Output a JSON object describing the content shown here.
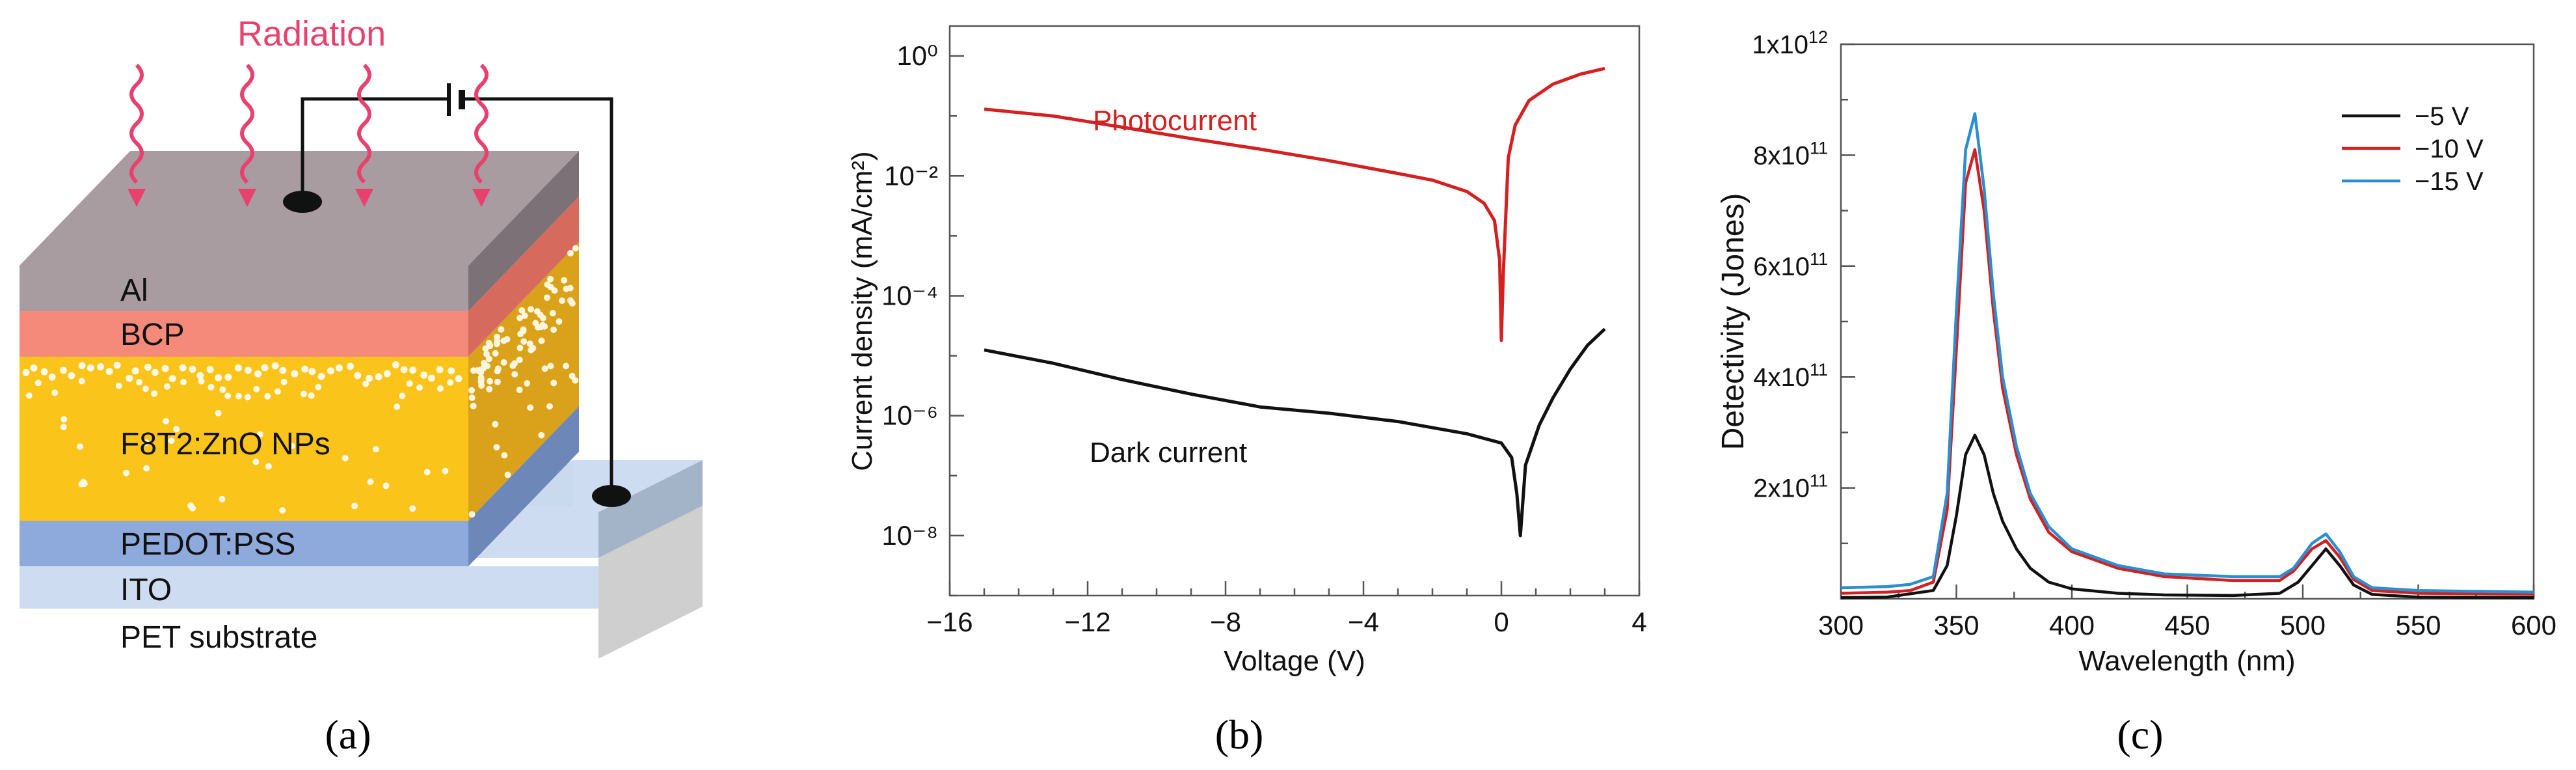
{
  "panel_a": {
    "radiation_label": "Radiation",
    "layers": [
      "Al",
      "BCP",
      "F8T2:ZnO NPs",
      "PEDOT:PSS",
      "ITO",
      "PET substrate"
    ],
    "caption": "(a)",
    "colors": {
      "radiation": "#e8416f",
      "al": "#a89ca0",
      "bcp": "#f58a7a",
      "active": "#fbc41a",
      "pedot": "#8ea9dc",
      "ito": "#cddcf0",
      "pet": "#ffffff"
    }
  },
  "panel_b": {
    "caption": "(b)"
  },
  "panel_c": {
    "caption": "(c)"
  },
  "chart_data": [
    {
      "type": "line",
      "panel": "b",
      "xlabel": "Voltage (V)",
      "ylabel": "Current density (mA/cm²)",
      "x_ticks": [
        "−16",
        "−12",
        "−8",
        "−4",
        "0",
        "4"
      ],
      "y_ticks": [
        "10⁰",
        "10⁻²",
        "10⁻⁴",
        "10⁻⁶",
        "10⁻⁸"
      ],
      "xlim": [
        -16,
        4
      ],
      "ylim_log10": [
        -9,
        0.5
      ],
      "y_scale": "log",
      "series": [
        {
          "name": "Photocurrent",
          "color": "#d42020",
          "points": [
            [
              -15,
              0.13
            ],
            [
              -13,
              0.1
            ],
            [
              -11,
              0.065
            ],
            [
              -9,
              0.042
            ],
            [
              -7,
              0.028
            ],
            [
              -5,
              0.018
            ],
            [
              -3,
              0.011
            ],
            [
              -2,
              0.0085
            ],
            [
              -1,
              0.0055
            ],
            [
              -0.5,
              0.0035
            ],
            [
              -0.2,
              0.0018
            ],
            [
              -0.05,
              0.0004
            ],
            [
              0,
              1.8e-05
            ],
            [
              0.05,
              0.0002
            ],
            [
              0.2,
              0.02
            ],
            [
              0.4,
              0.07
            ],
            [
              0.8,
              0.18
            ],
            [
              1.5,
              0.34
            ],
            [
              2.3,
              0.5
            ],
            [
              3,
              0.62
            ]
          ]
        },
        {
          "name": "Dark current",
          "color": "#111111",
          "points": [
            [
              -15,
              1.25e-05
            ],
            [
              -13,
              7.5e-06
            ],
            [
              -11,
              4e-06
            ],
            [
              -9,
              2.3e-06
            ],
            [
              -7,
              1.4e-06
            ],
            [
              -5,
              1.1e-06
            ],
            [
              -3,
              8e-07
            ],
            [
              -1,
              5e-07
            ],
            [
              0,
              3.5e-07
            ],
            [
              0.3,
              2e-07
            ],
            [
              0.45,
              5e-08
            ],
            [
              0.55,
              1e-08
            ],
            [
              0.7,
              1.5e-07
            ],
            [
              1.1,
              7e-07
            ],
            [
              1.5,
              2e-06
            ],
            [
              2,
              6e-06
            ],
            [
              2.5,
              1.5e-05
            ],
            [
              3,
              2.8e-05
            ]
          ]
        }
      ]
    },
    {
      "type": "line",
      "panel": "c",
      "xlabel": "Wavelength (nm)",
      "ylabel": "Detectivity (Jones)",
      "x_ticks": [
        "300",
        "350",
        "400",
        "450",
        "500",
        "550",
        "600"
      ],
      "xlim": [
        300,
        600
      ],
      "ylim": [
        0,
        1000000000000
      ],
      "y_ticks": [
        {
          "value": 200000000000,
          "mantissa": "2x10",
          "exp": "11"
        },
        {
          "value": 400000000000,
          "mantissa": "4x10",
          "exp": "11"
        },
        {
          "value": 600000000000,
          "mantissa": "6x10",
          "exp": "11"
        },
        {
          "value": 800000000000,
          "mantissa": "8x10",
          "exp": "11"
        },
        {
          "value": 1000000000000,
          "mantissa": "1x10",
          "exp": "12"
        }
      ],
      "legend_position": "top-right",
      "series": [
        {
          "name": "−5 V",
          "color": "#111111",
          "x": [
            300,
            320,
            340,
            346,
            350,
            354,
            358,
            362,
            366,
            370,
            376,
            382,
            390,
            400,
            420,
            440,
            470,
            490,
            498,
            504,
            510,
            516,
            522,
            530,
            550,
            600
          ],
          "y": [
            2000000000.0,
            3000000000.0,
            15000000000.0,
            60000000000.0,
            150000000000.0,
            260000000000.0,
            295000000000.0,
            260000000000.0,
            190000000000.0,
            140000000000.0,
            90000000000.0,
            55000000000.0,
            30000000000.0,
            18000000000.0,
            10000000000.0,
            7000000000.0,
            6000000000.0,
            10000000000.0,
            30000000000.0,
            60000000000.0,
            90000000000.0,
            60000000000.0,
            25000000000.0,
            8000000000.0,
            3000000000.0,
            2000000000.0
          ]
        },
        {
          "name": "−10 V",
          "color": "#d42020",
          "x": [
            300,
            320,
            330,
            340,
            346,
            350,
            354,
            358,
            362,
            366,
            370,
            376,
            382,
            390,
            400,
            420,
            440,
            470,
            490,
            496,
            504,
            510,
            516,
            522,
            530,
            550,
            600
          ],
          "y": [
            10000000000.0,
            12000000000.0,
            15000000000.0,
            30000000000.0,
            160000000000.0,
            450000000000.0,
            750000000000.0,
            810000000000.0,
            700000000000.0,
            520000000000.0,
            380000000000.0,
            260000000000.0,
            180000000000.0,
            120000000000.0,
            85000000000.0,
            55000000000.0,
            40000000000.0,
            33000000000.0,
            33000000000.0,
            50000000000.0,
            90000000000.0,
            105000000000.0,
            75000000000.0,
            35000000000.0,
            15000000000.0,
            10000000000.0,
            8000000000.0
          ]
        },
        {
          "name": "−15 V",
          "color": "#2a8fd0",
          "x": [
            300,
            320,
            330,
            340,
            346,
            350,
            354,
            358,
            362,
            366,
            370,
            376,
            382,
            390,
            400,
            420,
            440,
            470,
            490,
            496,
            504,
            510,
            516,
            522,
            530,
            550,
            600
          ],
          "y": [
            20000000000.0,
            22000000000.0,
            26000000000.0,
            40000000000.0,
            190000000000.0,
            520000000000.0,
            810000000000.0,
            875000000000.0,
            740000000000.0,
            550000000000.0,
            400000000000.0,
            275000000000.0,
            190000000000.0,
            130000000000.0,
            90000000000.0,
            60000000000.0,
            45000000000.0,
            40000000000.0,
            40000000000.0,
            55000000000.0,
            100000000000.0,
            117000000000.0,
            85000000000.0,
            40000000000.0,
            20000000000.0,
            15000000000.0,
            12000000000.0
          ]
        }
      ]
    }
  ]
}
